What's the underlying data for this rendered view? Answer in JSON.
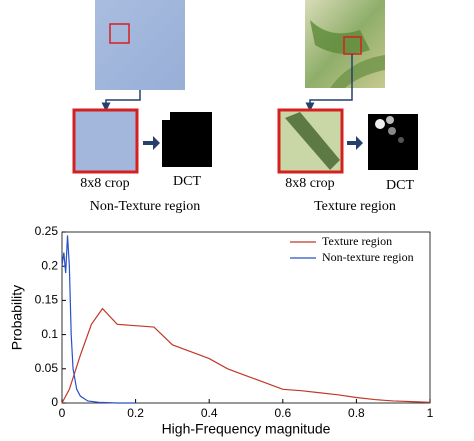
{
  "panels": [
    {
      "crop_label": "8x8 crop",
      "dct_label": "DCT",
      "caption": "Non-Texture region"
    },
    {
      "crop_label": "8x8 crop",
      "dct_label": "DCT",
      "caption": "Texture region"
    }
  ],
  "chart_data": {
    "type": "line",
    "xlabel": "High-Frequency magnitude",
    "ylabel": "Probability",
    "xlim": [
      0,
      1
    ],
    "ylim": [
      0,
      0.25
    ],
    "xticks": [
      0,
      0.2,
      0.4,
      0.6,
      0.8,
      1
    ],
    "yticks": [
      0,
      0.05,
      0.1,
      0.15,
      0.2,
      0.25
    ],
    "legend": "upper right",
    "series": [
      {
        "name": "Texture region",
        "color": "#c0392b",
        "x": [
          0,
          0.02,
          0.05,
          0.08,
          0.11,
          0.15,
          0.2,
          0.25,
          0.3,
          0.35,
          0.4,
          0.45,
          0.5,
          0.55,
          0.6,
          0.65,
          0.7,
          0.75,
          0.8,
          0.85,
          0.9,
          0.95,
          1
        ],
        "values": [
          0,
          0.02,
          0.07,
          0.115,
          0.138,
          0.115,
          0.113,
          0.111,
          0.085,
          0.075,
          0.065,
          0.05,
          0.04,
          0.03,
          0.02,
          0.018,
          0.015,
          0.012,
          0.008,
          0.005,
          0.003,
          0.002,
          0.001
        ]
      },
      {
        "name": "Non-texture region",
        "color": "#2850c8",
        "x": [
          0,
          0.005,
          0.01,
          0.015,
          0.02,
          0.025,
          0.03,
          0.04,
          0.05,
          0.07,
          0.1,
          0.15,
          0.2
        ],
        "values": [
          0.2,
          0.22,
          0.19,
          0.245,
          0.2,
          0.1,
          0.05,
          0.02,
          0.01,
          0.003,
          0.001,
          0,
          0
        ]
      }
    ]
  }
}
